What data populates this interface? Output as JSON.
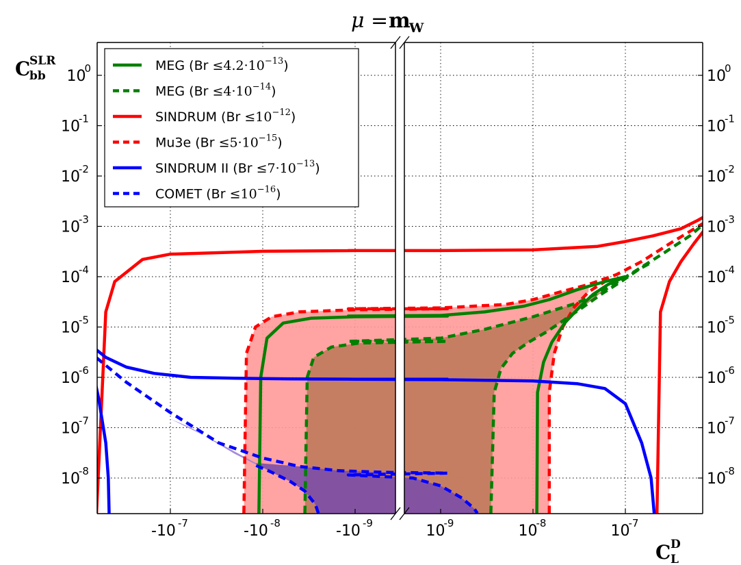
{
  "chart_data": {
    "type": "line",
    "title": {
      "mu": "μ",
      "eq": "=",
      "m": "m",
      "w": "W"
    },
    "ylabel": {
      "main": "C",
      "sup": "SLR",
      "sub": "bb"
    },
    "xlabel": {
      "main": "C",
      "sup": "D",
      "sub": "L"
    },
    "y_scale": "log",
    "x_scale": "symlog (broken axis at 0)",
    "grid": true,
    "legend_position": "top-left",
    "y_ticks": [
      {
        "base": "10",
        "exp": "0"
      },
      {
        "base": "10",
        "exp": "-1"
      },
      {
        "base": "10",
        "exp": "-2"
      },
      {
        "base": "10",
        "exp": "-3"
      },
      {
        "base": "10",
        "exp": "-4"
      },
      {
        "base": "10",
        "exp": "-5"
      },
      {
        "base": "10",
        "exp": "-6"
      },
      {
        "base": "10",
        "exp": "-7"
      },
      {
        "base": "10",
        "exp": "-8"
      }
    ],
    "x_ticks": [
      {
        "base": "-10",
        "exp": "-7"
      },
      {
        "base": "-10",
        "exp": "-8"
      },
      {
        "base": "-10",
        "exp": "-9"
      },
      {
        "base": "10",
        "exp": "-9"
      },
      {
        "base": "10",
        "exp": "-8"
      },
      {
        "base": "10",
        "exp": "-7"
      }
    ],
    "legend": [
      {
        "prefix": "MEG (Br",
        "le": "≤",
        "val": "4.2·10",
        "exp": "−13",
        "suffix": ")",
        "color": "#008000",
        "dash": false
      },
      {
        "prefix": "MEG (Br",
        "le": "≤",
        "val": "4·10",
        "exp": "−14",
        "suffix": ")",
        "color": "#008000",
        "dash": true
      },
      {
        "prefix": "SINDRUM (Br",
        "le": "≤",
        "val": "10",
        "exp": "−12",
        "suffix": ")",
        "color": "#ff0000",
        "dash": false
      },
      {
        "prefix": "Mu3e (Br",
        "le": "≤",
        "val": "5·10",
        "exp": "−15",
        "suffix": ")",
        "color": "#ff0000",
        "dash": true
      },
      {
        "prefix": "SINDRUM II (Br",
        "le": "≤",
        "val": "7·10",
        "exp": "−13",
        "suffix": ")",
        "color": "#0000ff",
        "dash": false
      },
      {
        "prefix": "COMET (Br",
        "le": "≤",
        "val": "10",
        "exp": "−16",
        "suffix": ")",
        "color": "#0000ff",
        "dash": true
      }
    ],
    "series": [
      {
        "name": "SINDRUM (Br ≤ 10^-12)",
        "color": "#ff0000",
        "dash": false,
        "x": [
          -6.3e-07,
          -5e-07,
          -4e-07,
          -2e-07,
          -1e-07,
          -1e-08,
          -1e-09,
          -1e-10,
          1e-10,
          1e-09,
          1e-08,
          5e-08,
          1e-07,
          2e-07,
          4e-07,
          6e-07,
          7.8e-07
        ],
        "y": [
          2e-09,
          2e-05,
          8e-05,
          0.00022,
          0.00028,
          0.00032,
          0.00033,
          0.00033,
          0.00033,
          0.00033,
          0.00034,
          0.0004,
          0.0005,
          0.00065,
          0.0009,
          0.0013,
          0.0017
        ]
      },
      {
        "name": "SINDRUM (Br ≤ 10^-12)",
        "color": "#ff0000",
        "dash": false,
        "x": [
          2.2e-07,
          2.4e-07,
          3e-07,
          4e-07,
          5.5e-07,
          7e-07,
          7.8e-07
        ],
        "y": [
          2e-09,
          2e-05,
          8e-05,
          0.0002,
          0.00045,
          0.0008,
          0.0011
        ]
      },
      {
        "name": "Mu3e (Br ≤ 5·10^-15)",
        "color": "#ff0000",
        "dash": true,
        "x": [
          -1.6e-08,
          -1.5e-08,
          -1.2e-08,
          -8e-09,
          -4e-09,
          -1e-09,
          -1e-10,
          1e-10,
          1e-09,
          5e-09,
          1e-08,
          2e-08,
          4e-08,
          8e-08,
          1.5e-07,
          3e-07,
          7.8e-07
        ],
        "y": [
          2e-09,
          3e-06,
          1e-05,
          1.6e-05,
          2e-05,
          2.2e-05,
          2.3e-05,
          2.3e-05,
          2.4e-05,
          2.8e-05,
          3.5e-05,
          5e-05,
          7e-05,
          0.00011,
          0.0002,
          0.00045,
          0.0013
        ]
      },
      {
        "name": "Mu3e (Br ≤ 5·10^-15)",
        "color": "#ff0000",
        "dash": true,
        "x": [
          1.5e-08,
          1.5e-08,
          1.7e-08,
          2.1e-08,
          2.8e-08,
          4e-08,
          6e-08
        ],
        "y": [
          2e-09,
          5e-07,
          3e-06,
          1e-05,
          2.5e-05,
          5e-05,
          8e-05
        ]
      },
      {
        "name": "MEG (Br ≤ 4.2·10^-13)",
        "color": "#008000",
        "dash": false,
        "x": [
          -1.1e-08,
          -1.05e-08,
          -9e-09,
          -6e-09,
          -3e-09,
          -1e-09,
          -1e-10,
          1e-10,
          1e-09,
          3e-09,
          8e-09,
          1.5e-08,
          3e-08,
          6e-08,
          1e-07
        ],
        "y": [
          2e-09,
          1e-06,
          6e-06,
          1.2e-05,
          1.5e-05,
          1.6e-05,
          1.65e-05,
          1.65e-05,
          1.7e-05,
          2e-05,
          2.6e-05,
          3.5e-05,
          5.5e-05,
          8e-05,
          0.0001
        ]
      },
      {
        "name": "MEG (Br ≤ 4.2·10^-13)",
        "color": "#008000",
        "dash": false,
        "x": [
          1.1e-08,
          1.12e-08,
          1.3e-08,
          1.6e-08,
          2.2e-08,
          3.2e-08,
          4.5e-08,
          6.5e-08,
          1e-07
        ],
        "y": [
          2e-09,
          5e-07,
          2e-06,
          5e-06,
          1.2e-05,
          2.5e-05,
          4.5e-05,
          7e-05,
          0.0001
        ]
      },
      {
        "name": "MEG (Br ≤ 4·10^-14)",
        "color": "#008000",
        "dash": true,
        "x": [
          -3.5e-09,
          -3.3e-09,
          -2.8e-09,
          -1.8e-09,
          -9e-10,
          -1e-10,
          1e-10,
          1e-09,
          3e-09,
          1e-08,
          3e-08,
          6e-08,
          1.2e-07,
          2.5e-07,
          5e-07,
          7.8e-07
        ],
        "y": [
          2e-09,
          1e-06,
          2.5e-06,
          4e-06,
          4.8e-06,
          5.2e-06,
          5.2e-06,
          6e-06,
          9e-06,
          1.6e-05,
          3e-05,
          5.5e-05,
          0.00012,
          0.00028,
          0.00065,
          0.0013
        ]
      },
      {
        "name": "MEG (Br ≤ 4·10^-14)",
        "color": "#008000",
        "dash": true,
        "x": [
          3.5e-09,
          3.8e-09,
          4.5e-09,
          6e-09,
          9e-09,
          1.4e-08,
          2.2e-08,
          3.5e-08,
          5.5e-08,
          9e-08,
          1.4e-07,
          2e-07
        ],
        "y": [
          2e-09,
          5e-07,
          1.5e-06,
          3e-06,
          5e-06,
          8e-06,
          1.4e-05,
          2.5e-05,
          4.5e-05,
          8e-05,
          0.00014,
          0.0002
        ]
      },
      {
        "name": "SINDRUM II (Br ≤ 7·10^-13)",
        "color": "#0000ff",
        "dash": false,
        "x": [
          -8e-07,
          -5e-07,
          -3e-07,
          -1.5e-07,
          -6e-08,
          -2e-08,
          -5e-09,
          -1e-09,
          -1e-10,
          1e-10,
          1e-09,
          1e-08,
          3e-08,
          6e-08,
          1e-07,
          1.5e-07,
          1.9e-07,
          2.05e-07
        ],
        "y": [
          5e-06,
          2.5e-06,
          1.6e-06,
          1.2e-06,
          1e-06,
          9.6e-07,
          9.3e-07,
          9.2e-07,
          9.2e-07,
          9.2e-07,
          9e-07,
          8.5e-07,
          7.5e-07,
          6e-07,
          3e-07,
          5e-08,
          1e-08,
          2e-09
        ]
      },
      {
        "name": "SINDRUM II (Br ≤ 7·10^-13)",
        "color": "#0000ff",
        "dash": false,
        "x": [
          -8e-07,
          -7e-07,
          -6e-07,
          -5e-07,
          -4.7e-07,
          -4.6e-07
        ],
        "y": [
          3.2e-06,
          1.5e-06,
          4e-07,
          5e-08,
          1e-08,
          2e-09
        ]
      },
      {
        "name": "COMET (Br ≤ 10^-16)",
        "color": "#0000ff",
        "dash": true,
        "x": [
          -8e-07,
          -3e-07,
          -1e-07,
          -3e-08,
          -1e-08,
          -4e-09,
          -1.5e-09,
          -5e-10,
          -1e-10,
          1e-10,
          5e-10,
          1e-09,
          1.7e-09,
          2.3e-09,
          2.5e-09
        ],
        "y": [
          3.5e-06,
          8e-07,
          2e-07,
          5e-08,
          2.5e-08,
          1.7e-08,
          1.4e-08,
          1.3e-08,
          1.25e-08,
          1.15e-08,
          1e-08,
          7e-09,
          4e-09,
          2.5e-09,
          2e-09
        ]
      },
      {
        "name": "COMET (Br ≤ 10^-16)",
        "color": "#0000ff",
        "dash": true,
        "x": [
          -2.5e-09,
          -2.7e-09,
          -3.5e-09,
          -5e-09,
          -8e-09,
          -1.2e-08
        ],
        "y": [
          2e-09,
          3e-09,
          5.5e-09,
          8.5e-09,
          1.3e-08,
          1.8e-08
        ]
      }
    ],
    "shaded_regions": [
      {
        "name": "Mu3e allowed",
        "color": "#ff9999",
        "x": [
          -1.6e-08,
          -1.5e-08,
          -1.2e-08,
          -8e-09,
          -4e-09,
          -1e-09,
          -1e-10,
          1e-10,
          1e-09,
          5e-09,
          1e-08,
          2e-08,
          4e-08,
          4e-08,
          2.8e-08,
          2.1e-08,
          1.7e-08,
          1.5e-08,
          1.5e-08
        ],
        "y": [
          2e-09,
          3e-06,
          1e-05,
          1.6e-05,
          2e-05,
          2.2e-05,
          2.3e-05,
          2.3e-05,
          2.4e-05,
          2.8e-05,
          3.5e-05,
          5e-05,
          7e-05,
          5e-05,
          2.5e-05,
          1e-05,
          3e-06,
          5e-07,
          2e-09
        ]
      },
      {
        "name": "MEG future allowed",
        "color": "#c07a5c",
        "x": [
          -3.5e-09,
          -3.3e-09,
          -2.8e-09,
          -1.8e-09,
          -9e-10,
          -1e-10,
          1e-10,
          1e-09,
          3e-09,
          1e-08,
          3e-08,
          6e-08,
          3.5e-08,
          2.2e-08,
          1.4e-08,
          9e-09,
          6e-09,
          4.5e-09,
          3.8e-09,
          3.5e-09
        ],
        "y": [
          2e-09,
          1e-06,
          2.5e-06,
          4e-06,
          4.8e-06,
          5.2e-06,
          5.2e-06,
          6e-06,
          9e-06,
          1.6e-05,
          3e-05,
          5.5e-05,
          2.5e-05,
          1.4e-05,
          8e-06,
          5e-06,
          3e-06,
          1.5e-06,
          5e-07,
          2e-09
        ]
      },
      {
        "name": "COMET allowed",
        "color": "#7b4fa8",
        "x": [
          -1.2e-08,
          -4e-09,
          -1.5e-09,
          -5e-10,
          -1e-10,
          1e-10,
          5e-10,
          1e-09,
          1.7e-09,
          2.3e-09,
          2.5e-09,
          -2.5e-09,
          -2.7e-09,
          -3.5e-09,
          -5e-09,
          -8e-09
        ],
        "y": [
          2e-08,
          1.7e-08,
          1.4e-08,
          1.3e-08,
          1.25e-08,
          1.15e-08,
          1e-08,
          7e-09,
          4e-09,
          2.5e-09,
          2e-09,
          2e-09,
          3e-09,
          5.5e-09,
          8.5e-09,
          1.3e-08
        ]
      },
      {
        "name": "COMET sliver",
        "color": "#9a80d8",
        "x": [
          -1e-07,
          -3e-08,
          -1.2e-08,
          -8e-09,
          -2e-08,
          -6e-08
        ],
        "y": [
          1.5e-07,
          5e-08,
          2e-08,
          1.3e-08,
          3e-08,
          1e-07
        ]
      }
    ]
  }
}
